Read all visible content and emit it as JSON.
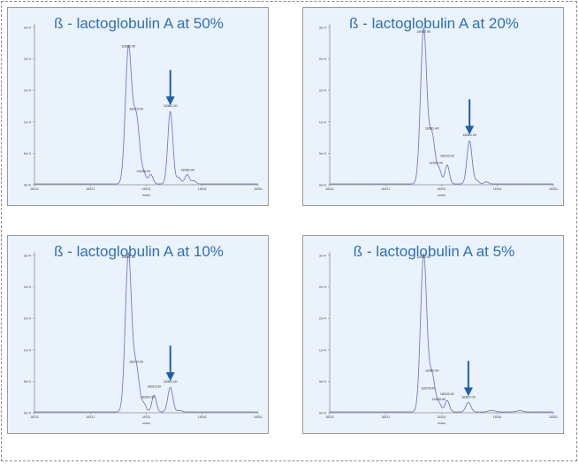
{
  "chart_data": [
    {
      "type": "line",
      "title": "ß - lactoglobulin A at 50%",
      "xlabel": "mass",
      "x_ticks": [
        "18311",
        "18321",
        "18331",
        "18341",
        "18351"
      ],
      "y_ticks": [
        "0e+0",
        "5e+3",
        "1e+4",
        "2e+4",
        "2e+4",
        "3e+4"
      ],
      "xlim": [
        18311,
        18351
      ],
      "ylim": [
        0,
        30000
      ],
      "color": "#7b78c4",
      "peak_labels": [
        {
          "text": "18362.00",
          "x": 18327.8,
          "y": 26200
        },
        {
          "text": "18379.00",
          "x": 18329.2,
          "y": 14200
        },
        {
          "text": "18395.00",
          "x": 18330.5,
          "y": 2400
        },
        {
          "text": "18362.00",
          "x": 18335.3,
          "y": 14800
        },
        {
          "text": "18380.00",
          "x": 18338.4,
          "y": 2600
        }
      ],
      "peaks": [
        {
          "x": 18327.8,
          "y": 25500,
          "w": 0.55
        },
        {
          "x": 18329.2,
          "y": 12800,
          "w": 0.6
        },
        {
          "x": 18330.6,
          "y": 1600,
          "w": 0.4
        },
        {
          "x": 18331.8,
          "y": 1800,
          "w": 0.4
        },
        {
          "x": 18335.3,
          "y": 13800,
          "w": 0.45
        },
        {
          "x": 18336.8,
          "y": 1200,
          "w": 0.4
        },
        {
          "x": 18338.3,
          "y": 1800,
          "w": 0.4
        },
        {
          "x": 18339.5,
          "y": 600,
          "w": 0.4
        }
      ],
      "arrow_x": 18335.3
    },
    {
      "type": "line",
      "title": "ß - lactoglobulin A at 20%",
      "xlabel": "mass",
      "x_ticks": [
        "18311",
        "18321",
        "18331",
        "18341",
        "18351"
      ],
      "y_ticks": [
        "0e+0",
        "5e+3",
        "1e+4",
        "2e+4",
        "2e+4",
        "3e+4"
      ],
      "xlim": [
        18311,
        18351
      ],
      "ylim": [
        0,
        30000
      ],
      "color": "#7b78c4",
      "peak_labels": [
        {
          "text": "18362.00",
          "x": 18327.8,
          "y": 29000
        },
        {
          "text": "18382.40",
          "x": 18329.3,
          "y": 10500
        },
        {
          "text": "18395.00",
          "x": 18330.0,
          "y": 4000
        },
        {
          "text": "18315.00",
          "x": 18332.0,
          "y": 5300
        },
        {
          "text": "18362.00",
          "x": 18336.0,
          "y": 9300
        }
      ],
      "peaks": [
        {
          "x": 18327.8,
          "y": 29500,
          "w": 0.55
        },
        {
          "x": 18329.3,
          "y": 9300,
          "w": 0.55
        },
        {
          "x": 18330.6,
          "y": 2500,
          "w": 0.4
        },
        {
          "x": 18332.0,
          "y": 3600,
          "w": 0.4
        },
        {
          "x": 18336.0,
          "y": 8200,
          "w": 0.45
        },
        {
          "x": 18337.3,
          "y": 600,
          "w": 0.4
        },
        {
          "x": 18339.0,
          "y": 400,
          "w": 0.4
        }
      ],
      "arrow_x": 18336.0
    },
    {
      "type": "line",
      "title": "ß - lactoglobulin A at 10%",
      "xlabel": "mass",
      "x_ticks": [
        "18311",
        "18321",
        "18331",
        "18341",
        "18351"
      ],
      "y_ticks": [
        "0e+0",
        "5e+3",
        "1e+4",
        "2e+4",
        "2e+4",
        "3e+4"
      ],
      "xlim": [
        18311,
        18351
      ],
      "ylim": [
        0,
        30000
      ],
      "color": "#7b78c4",
      "peak_labels": [
        {
          "text": "18362.00",
          "x": 18327.8,
          "y": 29500
        },
        {
          "text": "18379.00",
          "x": 18329.2,
          "y": 9500
        },
        {
          "text": "18315.00",
          "x": 18332.4,
          "y": 4800
        },
        {
          "text": "18395.00",
          "x": 18331.2,
          "y": 2800
        },
        {
          "text": "18362.00",
          "x": 18335.3,
          "y": 5700
        }
      ],
      "peaks": [
        {
          "x": 18327.8,
          "y": 30000,
          "w": 0.55
        },
        {
          "x": 18329.2,
          "y": 8400,
          "w": 0.55
        },
        {
          "x": 18330.6,
          "y": 1400,
          "w": 0.4
        },
        {
          "x": 18332.4,
          "y": 3200,
          "w": 0.4
        },
        {
          "x": 18335.3,
          "y": 4700,
          "w": 0.45
        },
        {
          "x": 18337.0,
          "y": 300,
          "w": 0.4
        }
      ],
      "arrow_x": 18335.3
    },
    {
      "type": "line",
      "title": "ß - lactoglobulin A at 5%",
      "xlabel": "mass",
      "x_ticks": [
        "18311",
        "18321",
        "18331",
        "18341",
        "18351"
      ],
      "y_ticks": [
        "0e+0",
        "5e+3",
        "1e+4",
        "2e+4",
        "2e+4",
        "3e+4"
      ],
      "xlim": [
        18311,
        18351
      ],
      "ylim": [
        0,
        30000
      ],
      "color": "#7b78c4",
      "peak_labels": [
        {
          "text": "18362.00",
          "x": 18327.8,
          "y": 29500
        },
        {
          "text": "18380.60",
          "x": 18329.3,
          "y": 7800
        },
        {
          "text": "18378.00",
          "x": 18328.6,
          "y": 4500
        },
        {
          "text": "18395.60",
          "x": 18330.5,
          "y": 2400
        },
        {
          "text": "18315.60",
          "x": 18332.0,
          "y": 3400
        },
        {
          "text": "18362.00",
          "x": 18335.8,
          "y": 2800
        }
      ],
      "peaks": [
        {
          "x": 18327.8,
          "y": 30000,
          "w": 0.55
        },
        {
          "x": 18329.3,
          "y": 7000,
          "w": 0.55
        },
        {
          "x": 18330.6,
          "y": 1400,
          "w": 0.4
        },
        {
          "x": 18332.0,
          "y": 2200,
          "w": 0.4
        },
        {
          "x": 18335.8,
          "y": 1800,
          "w": 0.45
        },
        {
          "x": 18340.0,
          "y": 300,
          "w": 0.6
        },
        {
          "x": 18345.0,
          "y": 250,
          "w": 0.6
        }
      ],
      "arrow_x": 18335.8
    }
  ]
}
